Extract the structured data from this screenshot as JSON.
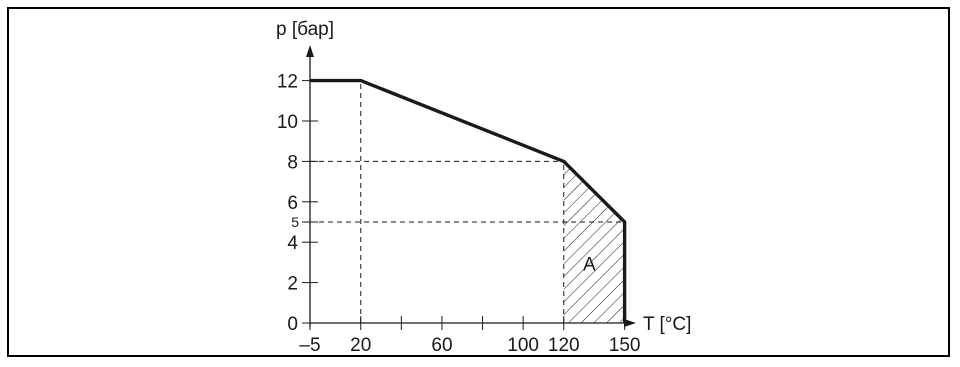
{
  "chart_data": {
    "type": "line",
    "title": "",
    "xlabel": "T [°C]",
    "ylabel": "p [бар]",
    "xlim": [
      -5,
      155
    ],
    "ylim": [
      0,
      12
    ],
    "grid": false,
    "x_tick_labels": [
      "–5",
      "20",
      "60",
      "100",
      "120",
      "150"
    ],
    "x_tick_values": [
      -5,
      20,
      60,
      100,
      120,
      150
    ],
    "x_minor_ticks": [
      40,
      80
    ],
    "y_tick_labels": [
      "0",
      "2",
      "4",
      "5",
      "6",
      "8",
      "10",
      "12"
    ],
    "y_tick_values": [
      0,
      2,
      4,
      5,
      6,
      8,
      10,
      12
    ],
    "series": [
      {
        "x": [
          -5,
          20,
          120,
          150,
          150
        ],
        "y": [
          12,
          12,
          8,
          5,
          0
        ]
      }
    ],
    "reference_lines": [
      {
        "from": [
          20,
          0
        ],
        "to": [
          20,
          12
        ]
      },
      {
        "from": [
          -5,
          8
        ],
        "to": [
          120,
          8
        ]
      },
      {
        "from": [
          120,
          0
        ],
        "to": [
          120,
          8
        ]
      },
      {
        "from": [
          -5,
          5
        ],
        "to": [
          150,
          5
        ]
      }
    ],
    "shaded_region": {
      "label": "A",
      "pattern": "hatched",
      "polygon": [
        [
          120,
          0
        ],
        [
          120,
          8
        ],
        [
          150,
          5
        ],
        [
          150,
          0
        ]
      ]
    },
    "colors": {
      "line": "#1a1a1a",
      "frame": "#000000",
      "background": "#ffffff"
    }
  }
}
